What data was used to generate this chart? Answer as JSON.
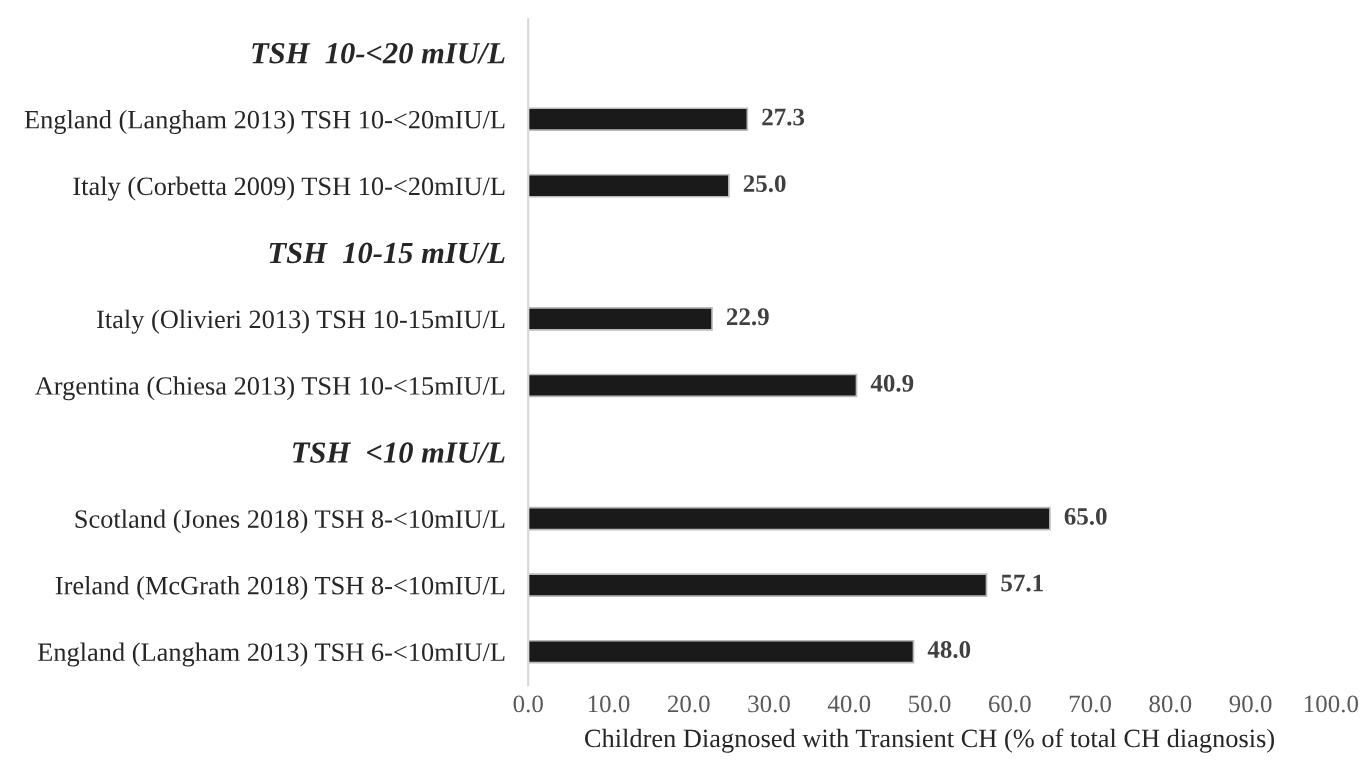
{
  "chart_data": {
    "type": "bar",
    "orientation": "horizontal",
    "xlabel": "Children Diagnosed with Transient CH (% of total CH diagnosis)",
    "categories": [
      "TSH  10-<20 mIU/L",
      "England (Langham 2013) TSH 10-<20mIU/L",
      "Italy (Corbetta 2009) TSH 10-<20mIU/L",
      "TSH  10-15 mIU/L",
      "Italy (Olivieri 2013) TSH 10-15mIU/L",
      "Argentina (Chiesa 2013) TSH 10-<15mIU/L",
      "TSH  <10 mIU/L",
      "Scotland (Jones 2018) TSH 8-<10mIU/L",
      "Ireland (McGrath 2018) TSH 8-<10mIU/L",
      "England (Langham 2013) TSH 6-<10mIU/L"
    ],
    "values": [
      null,
      27.3,
      25.0,
      null,
      22.9,
      40.9,
      null,
      65.0,
      57.1,
      48.0
    ],
    "value_labels": [
      null,
      "27.3",
      "25.0",
      null,
      "22.9",
      "40.9",
      null,
      "65.0",
      "57.1",
      "48.0"
    ],
    "color": "#1a1a1a",
    "xlim": [
      0,
      100
    ],
    "xticks": [
      {
        "value": 0,
        "label": "0.0"
      },
      {
        "value": 10,
        "label": "10.0"
      },
      {
        "value": 20,
        "label": "20.0"
      },
      {
        "value": 30,
        "label": "30.0"
      },
      {
        "value": 40,
        "label": "40.0"
      },
      {
        "value": 50,
        "label": "50.0"
      },
      {
        "value": 60,
        "label": "60.0"
      },
      {
        "value": 70,
        "label": "70.0"
      },
      {
        "value": 80,
        "label": "80.0"
      },
      {
        "value": 90,
        "label": "90.0"
      },
      {
        "value": 100,
        "label": "100.0"
      }
    ],
    "grid": false,
    "legend": false
  }
}
